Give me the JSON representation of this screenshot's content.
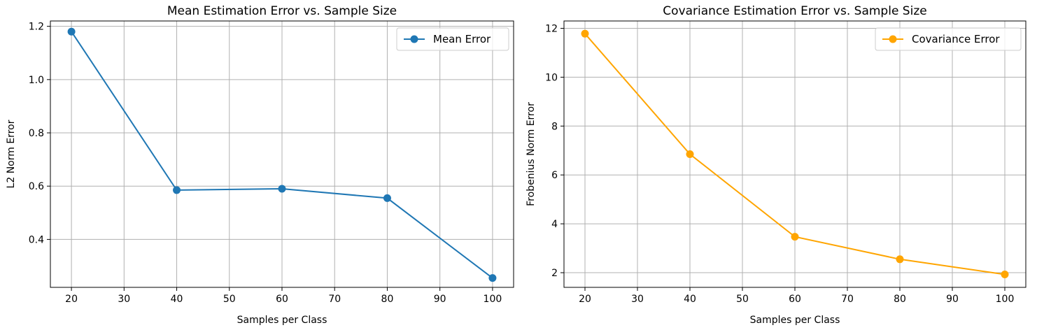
{
  "chart_data": [
    {
      "type": "line",
      "title": "Mean Estimation Error vs. Sample Size",
      "xlabel": "Samples per Class",
      "ylabel": "L2 Norm Error",
      "xlim": [
        16,
        104
      ],
      "ylim": [
        0.22,
        1.22
      ],
      "xticks": [
        20,
        30,
        40,
        50,
        60,
        70,
        80,
        90,
        100
      ],
      "yticks": [
        0.4,
        0.6,
        0.8,
        1.0,
        1.2
      ],
      "ytick_labels": [
        "0.4",
        "0.6",
        "0.8",
        "1.0",
        "1.2"
      ],
      "grid": true,
      "legend_position": "top-right",
      "series": [
        {
          "name": "Mean Error",
          "color": "#1f77b4",
          "marker": "circle",
          "x": [
            20,
            40,
            60,
            80,
            100
          ],
          "y": [
            1.18,
            0.585,
            0.59,
            0.555,
            0.255
          ]
        }
      ]
    },
    {
      "type": "line",
      "title": "Covariance Estimation Error vs. Sample Size",
      "xlabel": "Samples per Class",
      "ylabel": "Frobenius Norm Error",
      "xlim": [
        16,
        104
      ],
      "ylim": [
        1.4,
        12.3
      ],
      "xticks": [
        20,
        30,
        40,
        50,
        60,
        70,
        80,
        90,
        100
      ],
      "yticks": [
        2,
        4,
        6,
        8,
        10,
        12
      ],
      "ytick_labels": [
        "2",
        "4",
        "6",
        "8",
        "10",
        "12"
      ],
      "grid": true,
      "legend_position": "top-right",
      "series": [
        {
          "name": "Covariance Error",
          "color": "#ffa500",
          "marker": "circle",
          "x": [
            20,
            40,
            60,
            80,
            100
          ],
          "y": [
            11.78,
            6.85,
            3.47,
            2.55,
            1.93
          ]
        }
      ]
    }
  ]
}
